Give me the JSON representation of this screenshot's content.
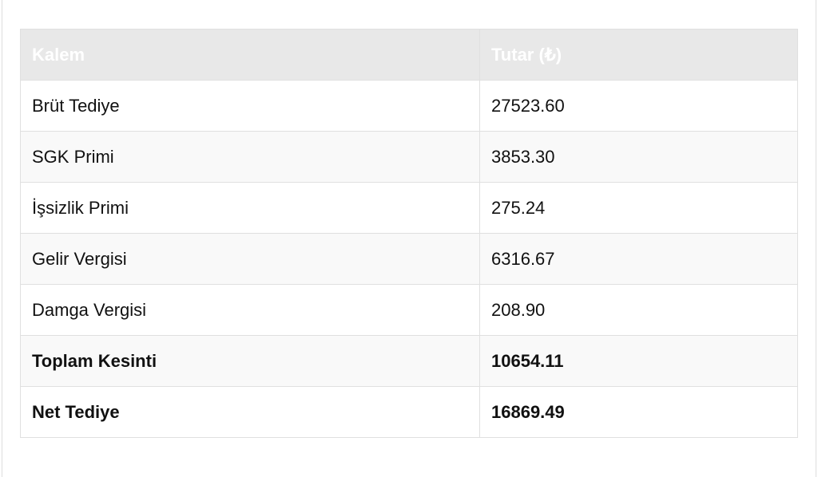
{
  "table": {
    "headers": [
      "Kalem",
      "Tutar (₺)"
    ],
    "rows": [
      {
        "item": "Brüt Tediye",
        "amount": "27523.60",
        "bold": false
      },
      {
        "item": "SGK Primi",
        "amount": "3853.30",
        "bold": false
      },
      {
        "item": "İşsizlik Primi",
        "amount": "275.24",
        "bold": false
      },
      {
        "item": "Gelir Vergisi",
        "amount": "6316.67",
        "bold": false
      },
      {
        "item": "Damga Vergisi",
        "amount": "208.90",
        "bold": false
      },
      {
        "item": "Toplam Kesinti",
        "amount": "10654.11",
        "bold": true
      },
      {
        "item": "Net Tediye",
        "amount": "16869.49",
        "bold": true
      }
    ]
  },
  "colors": {
    "header_bg": "#e8e8e8",
    "border": "#e0e0e0"
  }
}
